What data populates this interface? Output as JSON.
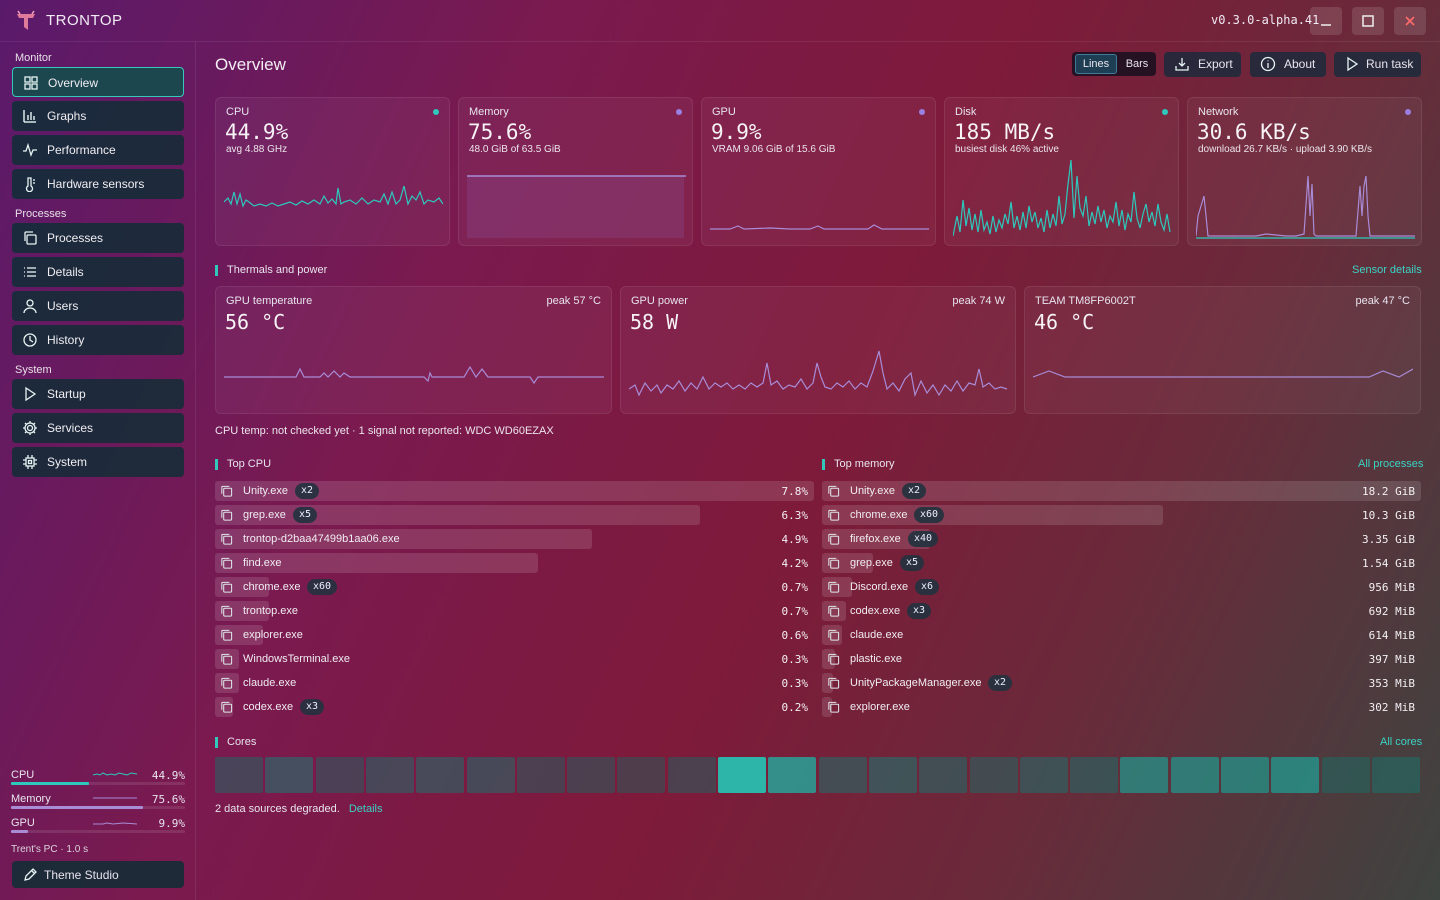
{
  "app": {
    "name": "TRONTOP",
    "version": "v0.3.0-alpha.41"
  },
  "window_controls": [
    "minimize-icon",
    "maximize-icon",
    "close-icon"
  ],
  "sidebar": {
    "sections": [
      {
        "label": "Monitor",
        "items": [
          {
            "label": "Overview",
            "icon": "grid-icon",
            "active": true
          },
          {
            "label": "Graphs",
            "icon": "bar-chart-icon"
          },
          {
            "label": "Performance",
            "icon": "pulse-icon"
          },
          {
            "label": "Hardware sensors",
            "icon": "thermometer-icon"
          }
        ]
      },
      {
        "label": "Processes",
        "items": [
          {
            "label": "Processes",
            "icon": "copy-icon"
          },
          {
            "label": "Details",
            "icon": "list-icon"
          },
          {
            "label": "Users",
            "icon": "user-icon"
          },
          {
            "label": "History",
            "icon": "clock-icon"
          }
        ]
      },
      {
        "label": "System",
        "items": [
          {
            "label": "Startup",
            "icon": "play-icon"
          },
          {
            "label": "Services",
            "icon": "gear-icon"
          },
          {
            "label": "System",
            "icon": "chip-icon"
          }
        ]
      }
    ],
    "mini_stats": [
      {
        "name": "CPU",
        "value": "44.9%",
        "level": 0.449,
        "color": "#2ec8bc"
      },
      {
        "name": "Memory",
        "value": "75.6%",
        "level": 0.756,
        "color": "#a98bd6"
      },
      {
        "name": "GPU",
        "value": "9.9%",
        "level": 0.099,
        "color": "#a98bd6"
      }
    ],
    "host": "Trent's PC · 1.0 s",
    "theme_button": "Theme Studio"
  },
  "header": {
    "title": "Overview",
    "view_toggle": {
      "on": "Lines",
      "off": "Bars"
    },
    "export": "Export",
    "about": "About",
    "run_task": "Run task"
  },
  "metrics": [
    {
      "title": "CPU",
      "value": "44.9%",
      "sub": "avg 4.88 GHz",
      "color": "#2ec8bc"
    },
    {
      "title": "Memory",
      "value": "75.6%",
      "sub": "48.0 GiB of 63.5 GiB",
      "color": "#9b7fe0"
    },
    {
      "title": "GPU",
      "value": "9.9%",
      "sub": "VRAM 9.06 GiB of 15.6 GiB",
      "color": "#9b7fe0"
    },
    {
      "title": "Disk",
      "value": "185 MB/s",
      "sub": "busiest disk 46% active",
      "color": "#2ec8bc"
    },
    {
      "title": "Network",
      "value": "30.6 KB/s",
      "sub": "download 26.7 KB/s · upload 3.90 KB/s",
      "color": "#9b7fe0"
    }
  ],
  "thermals": {
    "heading": "Thermals and power",
    "link": "Sensor details",
    "cards": [
      {
        "title": "GPU temperature",
        "peak": "peak 57 °C",
        "value": "56 °C"
      },
      {
        "title": "GPU power",
        "peak": "peak 74 W",
        "value": "58 W"
      },
      {
        "title": "TEAM TM8FP6002T",
        "peak": "peak 47 °C",
        "value": "46 °C"
      }
    ],
    "note": "CPU temp: not checked yet · 1 signal not reported: WDC WD60EZAX"
  },
  "top_cpu": {
    "heading": "Top CPU",
    "rows": [
      {
        "name": "Unity.exe",
        "count": "x2",
        "value": "7.8%",
        "share": 1.0
      },
      {
        "name": "grep.exe",
        "count": "x5",
        "value": "6.3%",
        "share": 0.81
      },
      {
        "name": "trontop-d2baa47499b1aa06.exe",
        "count": "",
        "value": "4.9%",
        "share": 0.63
      },
      {
        "name": "find.exe",
        "count": "",
        "value": "4.2%",
        "share": 0.54
      },
      {
        "name": "chrome.exe",
        "count": "x60",
        "value": "0.7%",
        "share": 0.09
      },
      {
        "name": "trontop.exe",
        "count": "",
        "value": "0.7%",
        "share": 0.09
      },
      {
        "name": "explorer.exe",
        "count": "",
        "value": "0.6%",
        "share": 0.08
      },
      {
        "name": "WindowsTerminal.exe",
        "count": "",
        "value": "0.3%",
        "share": 0.04
      },
      {
        "name": "claude.exe",
        "count": "",
        "value": "0.3%",
        "share": 0.04
      },
      {
        "name": "codex.exe",
        "count": "x3",
        "value": "0.2%",
        "share": 0.03
      }
    ]
  },
  "top_memory": {
    "heading": "Top memory",
    "link": "All processes",
    "rows": [
      {
        "name": "Unity.exe",
        "count": "x2",
        "value": "18.2 GiB",
        "share": 1.0
      },
      {
        "name": "chrome.exe",
        "count": "x60",
        "value": "10.3 GiB",
        "share": 0.57
      },
      {
        "name": "firefox.exe",
        "count": "x40",
        "value": "3.35 GiB",
        "share": 0.18
      },
      {
        "name": "grep.exe",
        "count": "x5",
        "value": "1.54 GiB",
        "share": 0.085
      },
      {
        "name": "Discord.exe",
        "count": "x6",
        "value": "956 MiB",
        "share": 0.05
      },
      {
        "name": "codex.exe",
        "count": "x3",
        "value": "692 MiB",
        "share": 0.04
      },
      {
        "name": "claude.exe",
        "count": "",
        "value": "614 MiB",
        "share": 0.033
      },
      {
        "name": "plastic.exe",
        "count": "",
        "value": "397 MiB",
        "share": 0.021
      },
      {
        "name": "UnityPackageManager.exe",
        "count": "x2",
        "value": "353 MiB",
        "share": 0.019
      },
      {
        "name": "explorer.exe",
        "count": "",
        "value": "302 MiB",
        "share": 0.016
      }
    ]
  },
  "cores": {
    "heading": "Cores",
    "link": "All cores",
    "loads": [
      0.25,
      0.35,
      0.22,
      0.28,
      0.3,
      0.3,
      0.22,
      0.22,
      0.18,
      0.22,
      0.95,
      0.75,
      0.3,
      0.35,
      0.3,
      0.25,
      0.3,
      0.28,
      0.6,
      0.6,
      0.6,
      0.65,
      0.25,
      0.3
    ]
  },
  "footer": {
    "text": "2 data sources degraded.",
    "link": "Details"
  }
}
